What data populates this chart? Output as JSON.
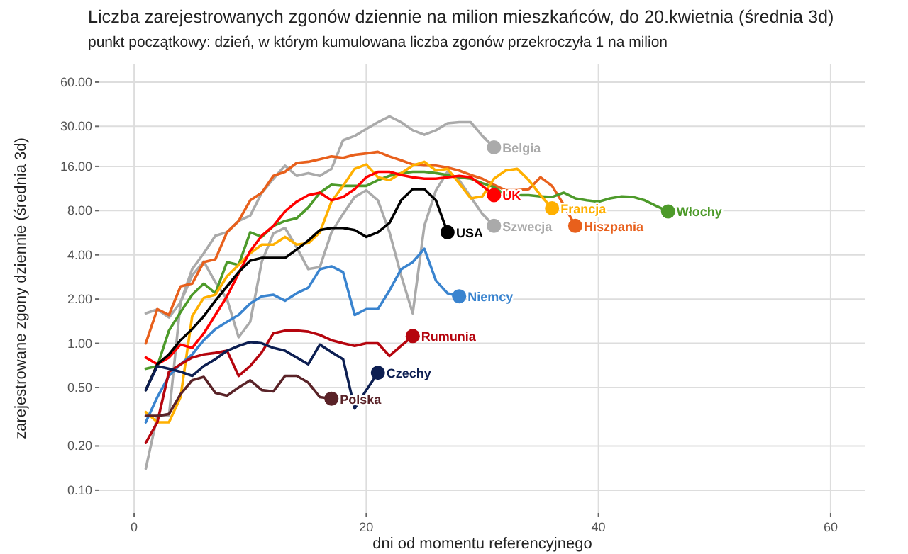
{
  "chart_data": {
    "type": "line",
    "title": "Liczba zarejestrowanych zgonów dziennie na milion mieszkańców, do 20.kwietnia (średnia 3d)",
    "subtitle": "punkt początkowy: dzień, w którym kumulowana liczba zgonów przekroczyła 1 na milion",
    "xlabel": "dni od momentu referencyjnego",
    "ylabel": "zarejestrowane zgony dziennie (średnia 3d)",
    "series": [
      {
        "name": "Belgia",
        "color": "#aaaaaa",
        "x": [
          1,
          2,
          3,
          4,
          5,
          6,
          7,
          8,
          9,
          10,
          11,
          12,
          13,
          14,
          15,
          16,
          17,
          18,
          19,
          20,
          21,
          22,
          23,
          24,
          25,
          26,
          27,
          28,
          29,
          30,
          31
        ],
        "values": [
          1.6,
          1.7,
          1.5,
          1.9,
          3.2,
          4.1,
          5.4,
          5.7,
          6.8,
          7.4,
          10.6,
          13.2,
          16.2,
          13.8,
          14.4,
          13.8,
          15.4,
          24.1,
          25.8,
          28.8,
          32,
          35,
          32,
          28.2,
          26.3,
          28.2,
          31.5,
          32,
          32,
          25.8,
          21.6
        ]
      },
      {
        "name": "Szwecja",
        "color": "#aaaaaa",
        "x": [
          1,
          2,
          3,
          4,
          5,
          6,
          7,
          8,
          9,
          10,
          11,
          12,
          13,
          14,
          15,
          16,
          17,
          18,
          19,
          20,
          21,
          22,
          23,
          24,
          25,
          26,
          27,
          28,
          29,
          30,
          31
        ],
        "values": [
          0.14,
          0.32,
          0.32,
          1.9,
          2.9,
          3.6,
          2.6,
          2.0,
          1.1,
          1.4,
          3.6,
          5.6,
          6.1,
          4.5,
          3.2,
          3.3,
          5.7,
          7.6,
          9.9,
          11,
          9.4,
          5.7,
          2.9,
          1.6,
          6.3,
          11,
          14.7,
          12.9,
          9.9,
          7.6,
          6.3
        ]
      },
      {
        "name": "Hiszpania",
        "color": "#e8601c",
        "x": [
          1,
          2,
          3,
          4,
          5,
          6,
          7,
          8,
          9,
          10,
          11,
          12,
          13,
          14,
          15,
          16,
          17,
          18,
          19,
          20,
          21,
          22,
          23,
          24,
          25,
          26,
          27,
          28,
          29,
          30,
          31,
          32,
          33,
          34,
          35,
          36,
          37,
          38
        ],
        "values": [
          1.0,
          1.71,
          1.56,
          2.44,
          2.55,
          3.57,
          3.73,
          5.7,
          6.8,
          9.4,
          10.6,
          13.8,
          14.7,
          16.9,
          17.2,
          17.9,
          18.7,
          18.3,
          19.2,
          19.6,
          20.1,
          18.7,
          17.6,
          16.5,
          16.2,
          16.2,
          15.7,
          15.0,
          14.0,
          13.2,
          12.0,
          11.0,
          11.0,
          11.2,
          13.5,
          11.8,
          8.8,
          6.3
        ]
      },
      {
        "name": "Włochy",
        "color": "#4d9a2a",
        "x": [
          1,
          2,
          3,
          4,
          5,
          6,
          7,
          8,
          9,
          10,
          11,
          12,
          13,
          14,
          15,
          16,
          17,
          18,
          19,
          20,
          21,
          22,
          23,
          24,
          25,
          26,
          27,
          28,
          29,
          30,
          31,
          32,
          33,
          34,
          35,
          36,
          37,
          38,
          39,
          40,
          41,
          42,
          43,
          44,
          45,
          46
        ],
        "values": [
          0.67,
          0.7,
          1.22,
          1.63,
          2.14,
          2.55,
          2.19,
          3.57,
          3.41,
          5.7,
          5.3,
          6.3,
          6.8,
          7.1,
          8.4,
          10.6,
          12.0,
          11.8,
          11.8,
          11.8,
          12.9,
          13.8,
          14.4,
          14.7,
          14.7,
          14.4,
          14.0,
          13.5,
          13.2,
          12.3,
          11.6,
          10.2,
          10.2,
          10.2,
          10.0,
          9.9,
          10.6,
          9.7,
          9.4,
          9.2,
          9.7,
          10.0,
          9.9,
          9.4,
          8.6,
          7.9
        ]
      },
      {
        "name": "Francja",
        "color": "#ffb000",
        "x": [
          1,
          2,
          3,
          4,
          5,
          6,
          7,
          8,
          9,
          10,
          11,
          12,
          13,
          14,
          15,
          16,
          17,
          18,
          19,
          20,
          21,
          22,
          23,
          24,
          25,
          26,
          27,
          28,
          29,
          30,
          31,
          32,
          33,
          34,
          35,
          36
        ],
        "values": [
          0.34,
          0.29,
          0.29,
          0.43,
          1.53,
          2.04,
          2.14,
          2.86,
          3.41,
          4.1,
          4.7,
          4.7,
          5.3,
          4.7,
          4.8,
          5.7,
          9.2,
          11.8,
          15.4,
          16.5,
          13.5,
          12.9,
          14.4,
          16.2,
          17.2,
          15.0,
          15.4,
          12.3,
          9.7,
          10.0,
          13.2,
          15.0,
          15.4,
          12.9,
          10.2,
          8.3
        ]
      },
      {
        "name": "UK",
        "color": "#ff0000",
        "x": [
          1,
          2,
          3,
          4,
          5,
          6,
          7,
          8,
          9,
          10,
          11,
          12,
          13,
          14,
          15,
          16,
          17,
          18,
          19,
          20,
          21,
          22,
          23,
          24,
          25,
          26,
          27,
          28,
          29,
          30,
          31
        ],
        "values": [
          0.8,
          0.72,
          0.8,
          0.98,
          0.93,
          1.17,
          1.56,
          2.09,
          2.99,
          4.25,
          5.4,
          6.3,
          7.9,
          9.2,
          10.2,
          10.6,
          9.4,
          9.9,
          11.2,
          13.5,
          14.7,
          14.7,
          14.0,
          13.5,
          13.2,
          13.2,
          13.5,
          13.8,
          13.5,
          11.8,
          10.2
        ]
      },
      {
        "name": "USA",
        "color": "#000000",
        "x": [
          1,
          2,
          3,
          4,
          5,
          6,
          7,
          8,
          9,
          10,
          11,
          12,
          13,
          14,
          15,
          16,
          17,
          18,
          19,
          20,
          21,
          22,
          23,
          24,
          25,
          26,
          27
        ],
        "values": [
          0.48,
          0.72,
          0.84,
          1.05,
          1.25,
          1.53,
          1.95,
          2.44,
          3.05,
          3.65,
          3.81,
          3.81,
          3.81,
          4.35,
          5.0,
          5.9,
          6.1,
          6.1,
          5.9,
          5.3,
          5.7,
          6.6,
          9.4,
          11.2,
          11.2,
          9.4,
          5.7
        ]
      },
      {
        "name": "Niemcy",
        "color": "#3a84cf",
        "x": [
          1,
          2,
          3,
          4,
          5,
          6,
          7,
          8,
          9,
          10,
          11,
          12,
          13,
          14,
          15,
          16,
          17,
          18,
          19,
          20,
          21,
          22,
          23,
          24,
          25,
          26,
          27,
          28
        ],
        "values": [
          0.29,
          0.43,
          0.6,
          0.72,
          0.84,
          1.05,
          1.25,
          1.4,
          1.56,
          1.87,
          2.09,
          2.14,
          1.95,
          2.19,
          2.39,
          3.19,
          3.34,
          3.05,
          1.56,
          1.71,
          1.71,
          2.29,
          3.19,
          3.57,
          4.4,
          2.67,
          2.19,
          2.09
        ]
      },
      {
        "name": "Rumunia",
        "color": "#b5050e",
        "x": [
          1,
          2,
          3,
          4,
          5,
          6,
          7,
          8,
          9,
          10,
          11,
          12,
          13,
          14,
          15,
          16,
          17,
          18,
          19,
          20,
          21,
          22,
          23,
          24
        ],
        "values": [
          0.21,
          0.29,
          0.64,
          0.72,
          0.8,
          0.84,
          0.86,
          0.89,
          0.6,
          0.7,
          0.87,
          1.17,
          1.22,
          1.22,
          1.2,
          1.14,
          1.05,
          1.0,
          0.96,
          1.0,
          1.0,
          0.82,
          0.96,
          1.12
        ]
      },
      {
        "name": "Czechy",
        "color": "#0d1f52",
        "x": [
          1,
          2,
          3,
          4,
          5,
          6,
          7,
          8,
          9,
          10,
          11,
          12,
          13,
          14,
          15,
          16,
          17,
          18,
          19,
          20,
          21
        ],
        "values": [
          0.48,
          0.7,
          0.67,
          0.64,
          0.6,
          0.7,
          0.78,
          0.89,
          0.96,
          1.02,
          1.0,
          0.93,
          0.89,
          0.8,
          0.72,
          0.98,
          0.87,
          0.78,
          0.36,
          0.48,
          0.63
        ]
      },
      {
        "name": "Polska",
        "color": "#5a2328",
        "x": [
          1,
          2,
          3,
          4,
          5,
          6,
          7,
          8,
          9,
          10,
          11,
          12,
          13,
          14,
          15,
          16,
          17
        ],
        "values": [
          0.32,
          0.32,
          0.33,
          0.45,
          0.56,
          0.59,
          0.46,
          0.44,
          0.5,
          0.56,
          0.48,
          0.47,
          0.6,
          0.6,
          0.54,
          0.43,
          0.42
        ]
      }
    ],
    "log": true,
    "grid": true,
    "xlim": [
      -3,
      63
    ],
    "xticks": [
      0,
      20,
      40,
      60
    ],
    "ylim": [
      0.07,
      80
    ],
    "yticks": [
      {
        "value": 0.1,
        "label": "0.10"
      },
      {
        "value": 0.2,
        "label": "0.20"
      },
      {
        "value": 0.5,
        "label": "0.50"
      },
      {
        "value": 1,
        "label": "1.00"
      },
      {
        "value": 2,
        "label": "2.00"
      },
      {
        "value": 4,
        "label": "4.00"
      },
      {
        "value": 8,
        "label": "8.00"
      },
      {
        "value": 16,
        "label": "16.00"
      },
      {
        "value": 30,
        "label": "30.00"
      },
      {
        "value": 60,
        "label": "60.00"
      }
    ]
  }
}
